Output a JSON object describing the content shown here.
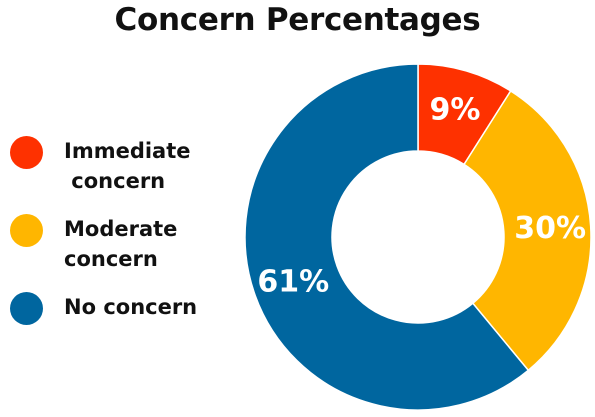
{
  "chart_data": {
    "type": "pie",
    "donut": true,
    "title": "Concern Percentages",
    "categories": [
      "Immediate\n concern",
      "Moderate\nconcern",
      "No concern"
    ],
    "values": [
      9,
      30,
      61
    ],
    "value_labels": [
      "9%",
      "30%",
      "61%"
    ],
    "colors": [
      "#fe3100",
      "#ffb600",
      "#00669f"
    ],
    "legend_position": "left"
  }
}
